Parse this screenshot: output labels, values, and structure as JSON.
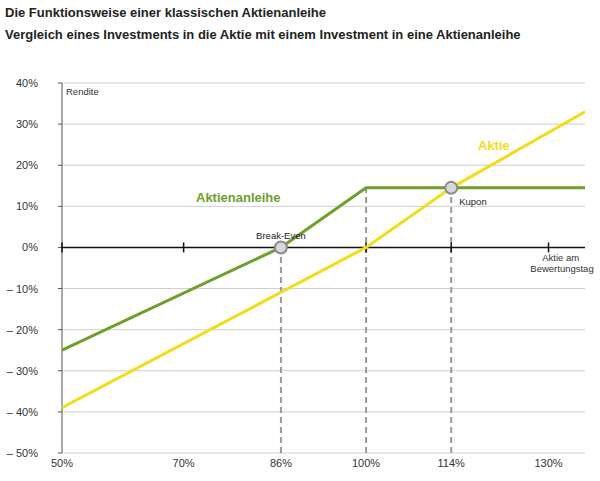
{
  "chart_data": {
    "type": "line",
    "title": "Die Funktionsweise einer klassischen Aktienanleihe",
    "subtitle": "Vergleich eines Investments in die Aktie mit einem Investment in eine Aktienanleihe",
    "y_label": "Rendite",
    "x_label": "Aktie am Bewertungstag",
    "xlim": [
      50,
      136
    ],
    "ylim": [
      -50,
      40
    ],
    "xticks": [
      {
        "value": 50,
        "label": "50%"
      },
      {
        "value": 70,
        "label": "70%"
      },
      {
        "value": 86,
        "label": "86%"
      },
      {
        "value": 100,
        "label": "100%"
      },
      {
        "value": 114,
        "label": "114%"
      },
      {
        "value": 130,
        "label": "130%"
      }
    ],
    "yticks": [
      {
        "value": 40,
        "label": "40%"
      },
      {
        "value": 30,
        "label": "30%"
      },
      {
        "value": 20,
        "label": "20%"
      },
      {
        "value": 10,
        "label": "10%"
      },
      {
        "value": 0,
        "label": "0%"
      },
      {
        "value": -10,
        "label": "– 10%"
      },
      {
        "value": -20,
        "label": "– 20%"
      },
      {
        "value": -30,
        "label": "– 30%"
      },
      {
        "value": -40,
        "label": "– 40%"
      },
      {
        "value": -50,
        "label": "– 50%"
      }
    ],
    "grid": true,
    "series": [
      {
        "name": "Aktienanleihe",
        "color": "#6f9e2a",
        "x": [
          50,
          86,
          100,
          136
        ],
        "values": [
          -25,
          0,
          14.5,
          14.5
        ]
      },
      {
        "name": "Aktie",
        "color": "#f2dc1c",
        "x": [
          50,
          100,
          114,
          136
        ],
        "values": [
          -39,
          0,
          14.5,
          33
        ]
      }
    ],
    "annotations": [
      {
        "text": "Break-Even",
        "x": 86,
        "y": 0
      },
      {
        "text": "Kupon",
        "x": 114,
        "y": 14.5
      }
    ],
    "reference_lines": [
      {
        "x": 86,
        "y": 0
      },
      {
        "x": 100,
        "y": 14.5
      },
      {
        "x": 114,
        "y": 14.5
      }
    ]
  }
}
